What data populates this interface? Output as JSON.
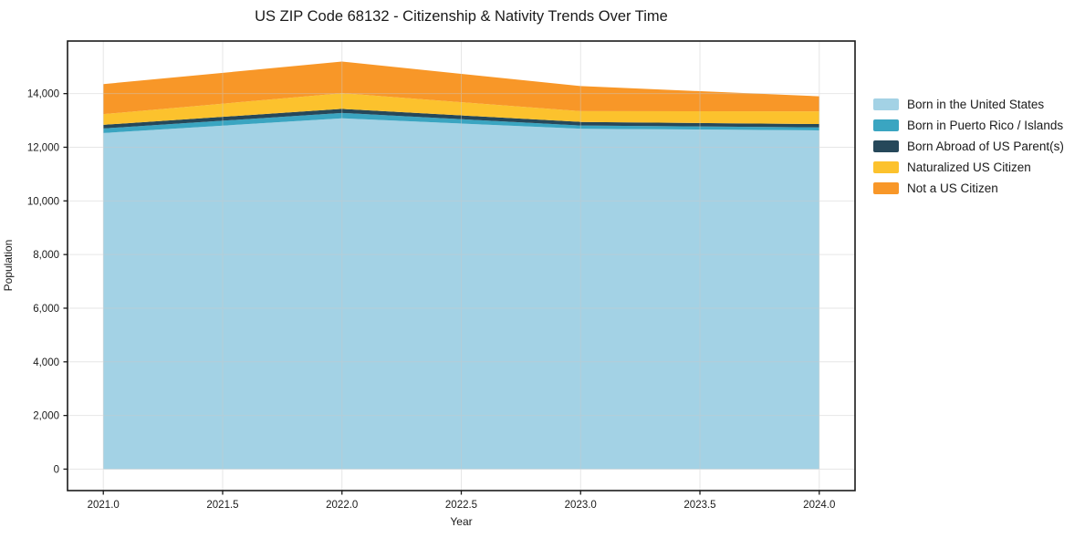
{
  "page": {
    "title": "US ZIP Code 68132 - Citizenship & Nativity Trends Over Time"
  },
  "chart_data": {
    "type": "area",
    "stacked": true,
    "title": "US ZIP Code 68132 - Citizenship & Nativity Trends Over Time",
    "xlabel": "Year",
    "ylabel": "Population",
    "x": [
      2021,
      2022,
      2023,
      2024
    ],
    "series": [
      {
        "name": "Born in the United States",
        "color": "#a3d2e5",
        "values": [
          12530,
          13080,
          12690,
          12630
        ]
      },
      {
        "name": "Born in Puerto Rico / Islands",
        "color": "#3aa5c1",
        "values": [
          170,
          200,
          120,
          110
        ]
      },
      {
        "name": "Born Abroad of US Parent(s)",
        "color": "#26485a",
        "values": [
          135,
          150,
          135,
          125
        ]
      },
      {
        "name": "Naturalized US Citizen",
        "color": "#fcc22d",
        "values": [
          400,
          585,
          400,
          475
        ]
      },
      {
        "name": "Not a US Citizen",
        "color": "#f89728",
        "values": [
          1120,
          1180,
          935,
          560
        ]
      }
    ],
    "stacked_totals": [
      14355,
      15195,
      14280,
      13900
    ],
    "x_ticks": [
      {
        "value": 2021.0,
        "label": "2021.0"
      },
      {
        "value": 2021.5,
        "label": "2021.5"
      },
      {
        "value": 2022.0,
        "label": "2022.0"
      },
      {
        "value": 2022.5,
        "label": "2022.5"
      },
      {
        "value": 2023.0,
        "label": "2023.0"
      },
      {
        "value": 2023.5,
        "label": "2023.5"
      },
      {
        "value": 2024.0,
        "label": "2024.0"
      }
    ],
    "y_ticks": [
      {
        "value": 0,
        "label": "0"
      },
      {
        "value": 2000,
        "label": "2,000"
      },
      {
        "value": 4000,
        "label": "4,000"
      },
      {
        "value": 6000,
        "label": "6,000"
      },
      {
        "value": 8000,
        "label": "8,000"
      },
      {
        "value": 10000,
        "label": "10,000"
      },
      {
        "value": 12000,
        "label": "12,000"
      },
      {
        "value": 14000,
        "label": "14,000"
      }
    ],
    "xlim": [
      2020.85,
      2024.15
    ],
    "ylim": [
      -800,
      15960
    ],
    "grid": true,
    "legend_position": "right",
    "colors": {
      "grid": "#c9c9c9",
      "spine": "#1a1a1a",
      "text": "#1a1a1a"
    }
  }
}
